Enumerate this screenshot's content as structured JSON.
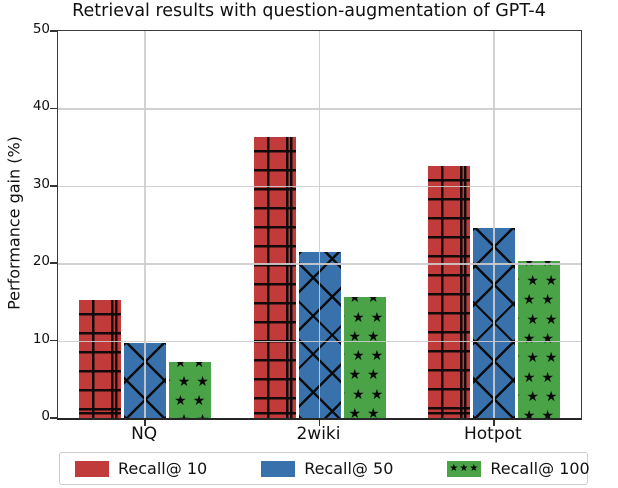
{
  "chart_data": {
    "type": "bar",
    "title": "Retrieval results with question-augmentation of GPT-4",
    "xlabel": "",
    "ylabel": "Performance gain (%)",
    "categories": [
      "NQ",
      "2wiki",
      "Hotpot"
    ],
    "series": [
      {
        "name": "Recall@ 10",
        "color": "#c23b3b",
        "hatch": "plus",
        "values": [
          15.2,
          36.3,
          32.5
        ]
      },
      {
        "name": "Recall@ 50",
        "color": "#3871ab",
        "hatch": "x",
        "values": [
          9.7,
          21.5,
          24.5
        ]
      },
      {
        "name": "Recall@ 100",
        "color": "#4aa447",
        "hatch": "star",
        "values": [
          7.3,
          15.6,
          20.3
        ]
      }
    ],
    "ylim": [
      0,
      50
    ],
    "yticks": [
      0,
      10,
      20,
      30,
      40,
      50
    ],
    "grid": true,
    "grid_color": "#cdcdcd",
    "legend_position": "bottom",
    "hatch_color": "#0a0a0a",
    "star_glyph": "★"
  }
}
